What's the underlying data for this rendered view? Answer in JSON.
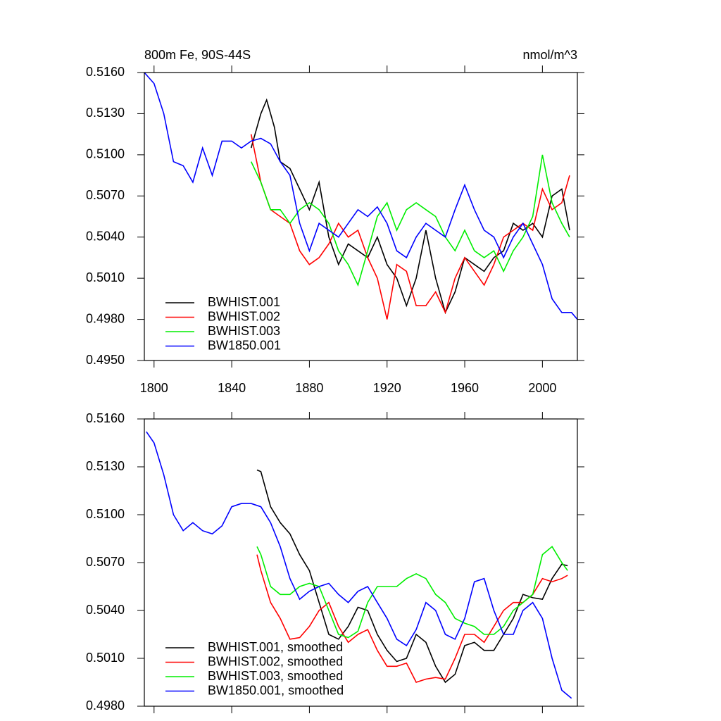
{
  "chart_data": [
    {
      "type": "line",
      "title": "800m Fe, 90S-44S",
      "y_units": "nmol/m^3",
      "xlim": [
        1795,
        2018
      ],
      "ylim": [
        0.495,
        0.516
      ],
      "xticks": [
        1800,
        1840,
        1880,
        1920,
        1960,
        2000
      ],
      "yticks": [
        {
          "value": 0.495,
          "label": "0.4950"
        },
        {
          "value": 0.498,
          "label": "0.4980"
        },
        {
          "value": 0.501,
          "label": "0.5010"
        },
        {
          "value": 0.504,
          "label": "0.5040"
        },
        {
          "value": 0.507,
          "label": "0.5070"
        },
        {
          "value": 0.51,
          "label": "0.5100"
        },
        {
          "value": 0.513,
          "label": "0.5130"
        },
        {
          "value": 0.516,
          "label": "0.5160"
        }
      ],
      "series": [
        {
          "name": "BWHIST.001",
          "color": "#000000",
          "x": [
            1850,
            1855,
            1858,
            1862,
            1865,
            1870,
            1875,
            1880,
            1885,
            1890,
            1895,
            1900,
            1905,
            1910,
            1915,
            1920,
            1925,
            1930,
            1935,
            1940,
            1945,
            1950,
            1955,
            1960,
            1965,
            1970,
            1975,
            1980,
            1985,
            1990,
            1995,
            2000,
            2005,
            2010,
            2014
          ],
          "values": [
            0.5105,
            0.513,
            0.514,
            0.512,
            0.5095,
            0.509,
            0.5075,
            0.506,
            0.508,
            0.504,
            0.502,
            0.5035,
            0.503,
            0.5025,
            0.504,
            0.502,
            0.501,
            0.499,
            0.501,
            0.5045,
            0.501,
            0.4985,
            0.5,
            0.5025,
            0.502,
            0.5015,
            0.5025,
            0.503,
            0.505,
            0.5045,
            0.505,
            0.504,
            0.507,
            0.5075,
            0.5045
          ]
        },
        {
          "name": "BWHIST.002",
          "color": "#ff0000",
          "x": [
            1850,
            1855,
            1860,
            1865,
            1870,
            1875,
            1880,
            1885,
            1890,
            1895,
            1900,
            1905,
            1910,
            1915,
            1920,
            1925,
            1930,
            1935,
            1940,
            1945,
            1950,
            1955,
            1960,
            1965,
            1970,
            1975,
            1980,
            1985,
            1990,
            1995,
            2000,
            2005,
            2010,
            2014
          ],
          "values": [
            0.5115,
            0.508,
            0.506,
            0.5055,
            0.505,
            0.503,
            0.502,
            0.5025,
            0.5035,
            0.505,
            0.504,
            0.5045,
            0.5025,
            0.501,
            0.498,
            0.502,
            0.5015,
            0.499,
            0.499,
            0.5,
            0.4985,
            0.501,
            0.5025,
            0.5015,
            0.5005,
            0.502,
            0.504,
            0.5045,
            0.505,
            0.5045,
            0.5075,
            0.506,
            0.5065,
            0.5085
          ]
        },
        {
          "name": "BWHIST.003",
          "color": "#00ee00",
          "x": [
            1850,
            1855,
            1860,
            1865,
            1870,
            1875,
            1880,
            1885,
            1890,
            1895,
            1900,
            1905,
            1910,
            1915,
            1920,
            1925,
            1930,
            1935,
            1940,
            1945,
            1950,
            1955,
            1960,
            1965,
            1970,
            1975,
            1980,
            1985,
            1990,
            1995,
            2000,
            2005,
            2010,
            2014
          ],
          "values": [
            0.5095,
            0.508,
            0.506,
            0.506,
            0.505,
            0.506,
            0.5065,
            0.506,
            0.505,
            0.503,
            0.502,
            0.5005,
            0.503,
            0.5055,
            0.5065,
            0.5045,
            0.506,
            0.5065,
            0.506,
            0.5055,
            0.504,
            0.503,
            0.5045,
            0.503,
            0.5025,
            0.503,
            0.5015,
            0.503,
            0.504,
            0.5055,
            0.51,
            0.5065,
            0.505,
            0.504
          ]
        },
        {
          "name": "BW1850.001",
          "color": "#0000ff",
          "x": [
            1795,
            1800,
            1805,
            1810,
            1815,
            1820,
            1825,
            1830,
            1835,
            1840,
            1845,
            1850,
            1855,
            1860,
            1865,
            1870,
            1875,
            1880,
            1885,
            1890,
            1895,
            1900,
            1905,
            1910,
            1915,
            1920,
            1925,
            1930,
            1935,
            1940,
            1945,
            1950,
            1955,
            1960,
            1965,
            1970,
            1975,
            1980,
            1985,
            1990,
            1995,
            2000,
            2005,
            2010,
            2015,
            2018
          ],
          "values": [
            0.516,
            0.5152,
            0.513,
            0.5095,
            0.5092,
            0.508,
            0.5105,
            0.5085,
            0.511,
            0.511,
            0.5105,
            0.511,
            0.5112,
            0.5108,
            0.5095,
            0.5085,
            0.505,
            0.503,
            0.505,
            0.5045,
            0.504,
            0.505,
            0.506,
            0.5055,
            0.5062,
            0.505,
            0.503,
            0.5025,
            0.504,
            0.505,
            0.5045,
            0.504,
            0.506,
            0.5078,
            0.506,
            0.5045,
            0.504,
            0.5025,
            0.504,
            0.505,
            0.5035,
            0.502,
            0.4995,
            0.4985,
            0.4985,
            0.498
          ]
        }
      ]
    },
    {
      "type": "line",
      "xlim": [
        1795,
        2018
      ],
      "ylim": [
        0.498,
        0.516
      ],
      "xticks": [
        1800,
        1840,
        1880,
        1920,
        1960,
        2000
      ],
      "yticks": [
        {
          "value": 0.498,
          "label": "0.4980"
        },
        {
          "value": 0.501,
          "label": "0.5010"
        },
        {
          "value": 0.504,
          "label": "0.5040"
        },
        {
          "value": 0.507,
          "label": "0.5070"
        },
        {
          "value": 0.51,
          "label": "0.5100"
        },
        {
          "value": 0.513,
          "label": "0.5130"
        },
        {
          "value": 0.516,
          "label": "0.5160"
        }
      ],
      "series": [
        {
          "name": "BWHIST.001, smoothed",
          "color": "#000000",
          "x": [
            1853,
            1855,
            1860,
            1865,
            1870,
            1875,
            1880,
            1885,
            1890,
            1895,
            1900,
            1905,
            1910,
            1915,
            1920,
            1925,
            1930,
            1935,
            1940,
            1945,
            1950,
            1955,
            1960,
            1965,
            1970,
            1975,
            1980,
            1985,
            1990,
            1995,
            2000,
            2005,
            2010,
            2013
          ],
          "values": [
            0.5128,
            0.5127,
            0.5105,
            0.5095,
            0.5088,
            0.5075,
            0.5065,
            0.5045,
            0.5025,
            0.5022,
            0.503,
            0.5042,
            0.504,
            0.5025,
            0.5015,
            0.5008,
            0.501,
            0.5025,
            0.502,
            0.5005,
            0.4995,
            0.5,
            0.5018,
            0.502,
            0.5015,
            0.5015,
            0.5025,
            0.5035,
            0.505,
            0.5048,
            0.5047,
            0.506,
            0.5069,
            0.5068
          ]
        },
        {
          "name": "BWHIST.002, smoothed",
          "color": "#ff0000",
          "x": [
            1853,
            1855,
            1860,
            1865,
            1870,
            1875,
            1880,
            1885,
            1890,
            1895,
            1900,
            1905,
            1910,
            1915,
            1920,
            1925,
            1930,
            1935,
            1940,
            1945,
            1950,
            1955,
            1960,
            1965,
            1970,
            1975,
            1980,
            1985,
            1990,
            1995,
            2000,
            2005,
            2010,
            2013
          ],
          "values": [
            0.5075,
            0.5065,
            0.5045,
            0.5035,
            0.5022,
            0.5023,
            0.503,
            0.504,
            0.5045,
            0.503,
            0.502,
            0.5025,
            0.5028,
            0.5015,
            0.5005,
            0.5005,
            0.5007,
            0.4995,
            0.4997,
            0.4998,
            0.4997,
            0.501,
            0.5025,
            0.5025,
            0.502,
            0.503,
            0.504,
            0.5045,
            0.5045,
            0.505,
            0.506,
            0.5058,
            0.506,
            0.5062
          ]
        },
        {
          "name": "BWHIST.003, smoothed",
          "color": "#00ee00",
          "x": [
            1853,
            1855,
            1860,
            1865,
            1870,
            1875,
            1880,
            1885,
            1890,
            1895,
            1900,
            1905,
            1910,
            1915,
            1920,
            1925,
            1930,
            1935,
            1940,
            1945,
            1950,
            1955,
            1960,
            1965,
            1970,
            1975,
            1980,
            1985,
            1990,
            1995,
            2000,
            2005,
            2010,
            2013
          ],
          "values": [
            0.508,
            0.5075,
            0.5055,
            0.505,
            0.505,
            0.5055,
            0.5057,
            0.5055,
            0.504,
            0.5025,
            0.5023,
            0.5027,
            0.5045,
            0.5055,
            0.5055,
            0.5055,
            0.506,
            0.5063,
            0.506,
            0.505,
            0.5045,
            0.5035,
            0.5032,
            0.503,
            0.5025,
            0.5025,
            0.503,
            0.504,
            0.5045,
            0.505,
            0.5075,
            0.508,
            0.507,
            0.5065
          ]
        },
        {
          "name": "BW1850.001, smoothed",
          "color": "#0000ff",
          "x": [
            1796,
            1800,
            1805,
            1810,
            1815,
            1820,
            1825,
            1830,
            1835,
            1840,
            1845,
            1850,
            1855,
            1860,
            1865,
            1870,
            1875,
            1880,
            1885,
            1890,
            1895,
            1900,
            1905,
            1910,
            1915,
            1920,
            1925,
            1930,
            1935,
            1940,
            1945,
            1950,
            1955,
            1960,
            1965,
            1970,
            1975,
            1980,
            1985,
            1990,
            1995,
            2000,
            2005,
            2010,
            2015
          ],
          "values": [
            0.5152,
            0.5145,
            0.5125,
            0.51,
            0.509,
            0.5095,
            0.509,
            0.5088,
            0.5093,
            0.5105,
            0.5107,
            0.5107,
            0.5105,
            0.5095,
            0.508,
            0.506,
            0.5047,
            0.5052,
            0.5055,
            0.5057,
            0.505,
            0.5045,
            0.5052,
            0.5055,
            0.5045,
            0.5035,
            0.5022,
            0.5018,
            0.5028,
            0.5045,
            0.504,
            0.5025,
            0.5022,
            0.5035,
            0.5058,
            0.506,
            0.504,
            0.5025,
            0.5025,
            0.504,
            0.5045,
            0.5035,
            0.501,
            0.499,
            0.4985
          ]
        }
      ]
    }
  ]
}
